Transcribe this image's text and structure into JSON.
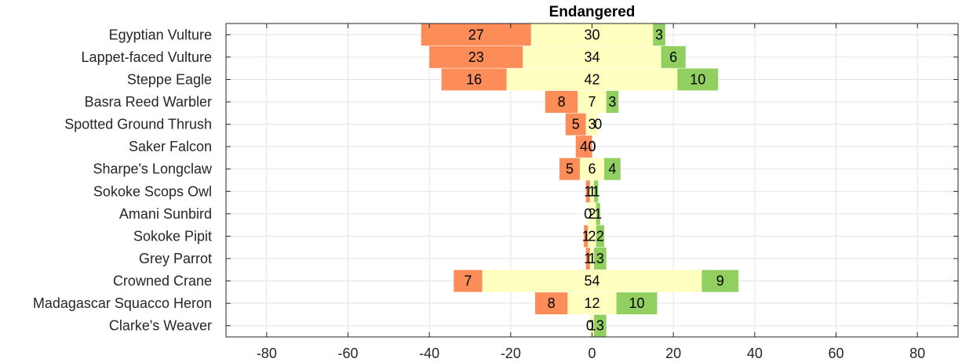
{
  "chart_data": {
    "type": "bar",
    "orientation": "horizontal-diverging-stacked",
    "title": "Endangered",
    "xlabel": "",
    "ylabel": "",
    "xlim": [
      -90,
      90
    ],
    "xticks": [
      -80,
      -60,
      -40,
      -20,
      0,
      20,
      40,
      60,
      80
    ],
    "grid": true,
    "legend": "none",
    "categories": [
      "Egyptian Vulture",
      "Lappet-faced Vulture",
      "Steppe Eagle",
      "Basra Reed Warbler",
      "Spotted Ground Thrush",
      "Saker Falcon",
      "Sharpe's Longclaw",
      "Sokoke Scops Owl",
      "Amani Sunbird",
      "Sokoke Pipit",
      "Grey Parrot",
      "Crowned Crane",
      "Madagascar Squacco Heron",
      "Clarke's Weaver"
    ],
    "series": [
      {
        "color": "#fc8d59",
        "values": [
          27,
          23,
          16,
          8,
          5,
          4,
          5,
          1,
          0,
          1,
          1,
          7,
          8,
          0
        ]
      },
      {
        "color": "#ffffbf",
        "values": [
          30,
          34,
          42,
          7,
          3,
          0,
          6,
          1,
          2,
          2,
          1,
          54,
          12,
          1
        ]
      },
      {
        "color": "#91cf60",
        "values": [
          3,
          6,
          10,
          3,
          0,
          0,
          4,
          1,
          1,
          2,
          3,
          9,
          10,
          3
        ]
      }
    ]
  }
}
